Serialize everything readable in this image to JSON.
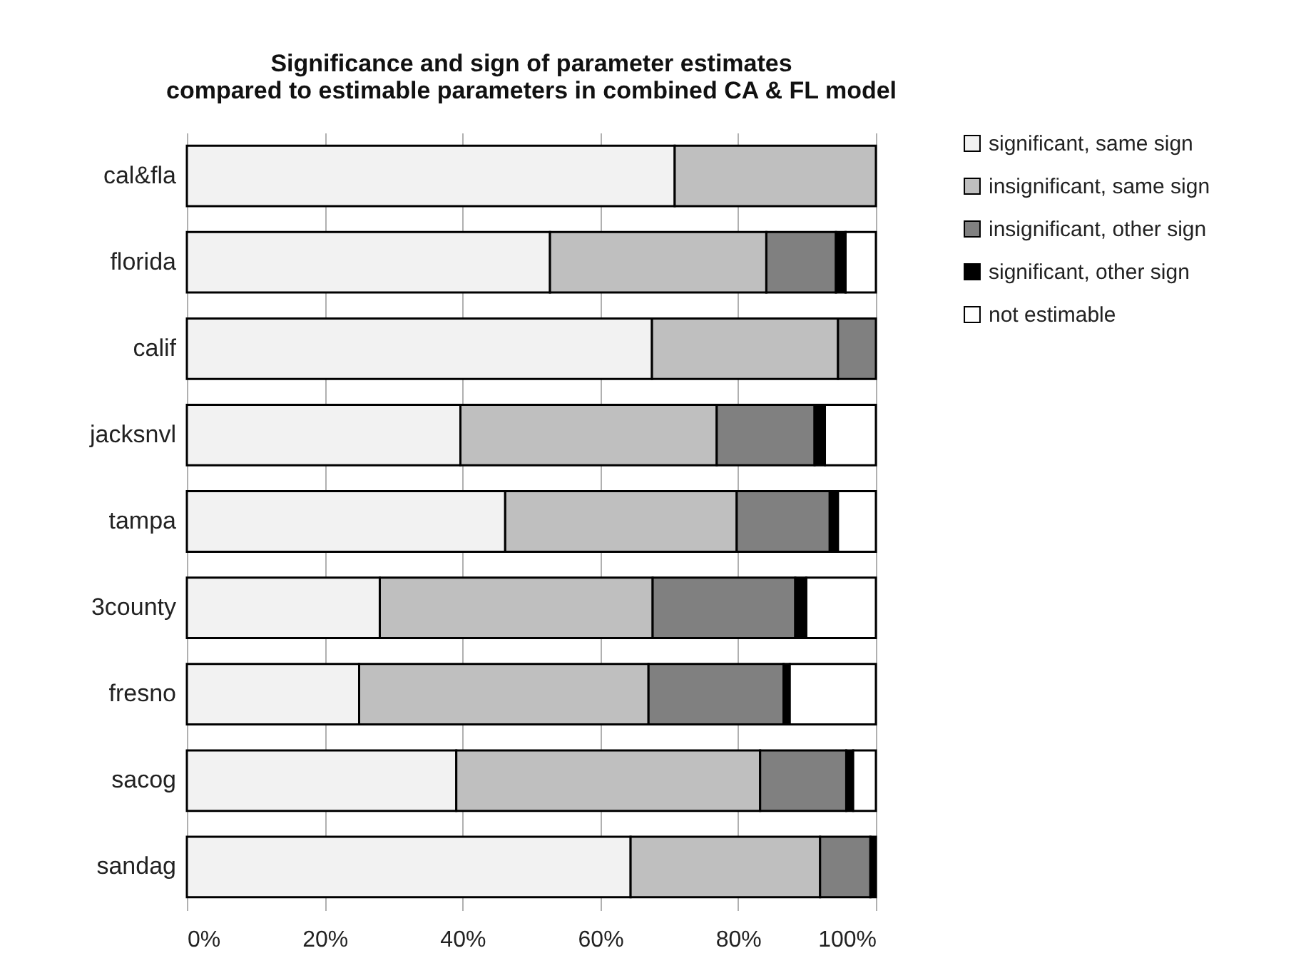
{
  "chart_data": {
    "type": "bar",
    "orientation": "horizontal",
    "stacked": true,
    "title": "Significance and sign of parameter estimates\ncompared to estimable parameters in combined CA & FL model",
    "categories": [
      "cal&fla",
      "florida",
      "calif",
      "jacksnvl",
      "tampa",
      "3county",
      "fresno",
      "sacog",
      "sandag"
    ],
    "series": [
      {
        "name": "significant, same sign",
        "color": "#f2f2f2",
        "values": [
          70.8,
          52.7,
          67.5,
          39.7,
          46.2,
          28.0,
          25.0,
          39.1,
          64.4
        ]
      },
      {
        "name": "insignificant, same sign",
        "color": "#bfbfbf",
        "values": [
          29.2,
          31.4,
          27.0,
          37.2,
          33.6,
          39.6,
          42.0,
          44.1,
          27.5
        ]
      },
      {
        "name": "insignificant, other sign",
        "color": "#808080",
        "values": [
          0,
          10.1,
          5.5,
          14.2,
          13.5,
          20.7,
          19.6,
          12.5,
          7.3
        ]
      },
      {
        "name": "significant, other sign",
        "color": "#000000",
        "values": [
          0,
          1.4,
          0,
          1.5,
          1.2,
          1.6,
          0.9,
          1.0,
          0.8
        ]
      },
      {
        "name": "not estimable",
        "color": "#ffffff",
        "values": [
          0,
          4.4,
          0,
          7.4,
          5.5,
          10.1,
          12.5,
          3.3,
          0
        ]
      }
    ],
    "xlim": [
      0,
      100
    ],
    "xticks": [
      {
        "value": 0,
        "label": "0%"
      },
      {
        "value": 20,
        "label": "20%"
      },
      {
        "value": 40,
        "label": "40%"
      },
      {
        "value": 60,
        "label": "60%"
      },
      {
        "value": 80,
        "label": "80%"
      },
      {
        "value": 100,
        "label": "100%"
      }
    ],
    "grid": "x",
    "legend": "right"
  }
}
